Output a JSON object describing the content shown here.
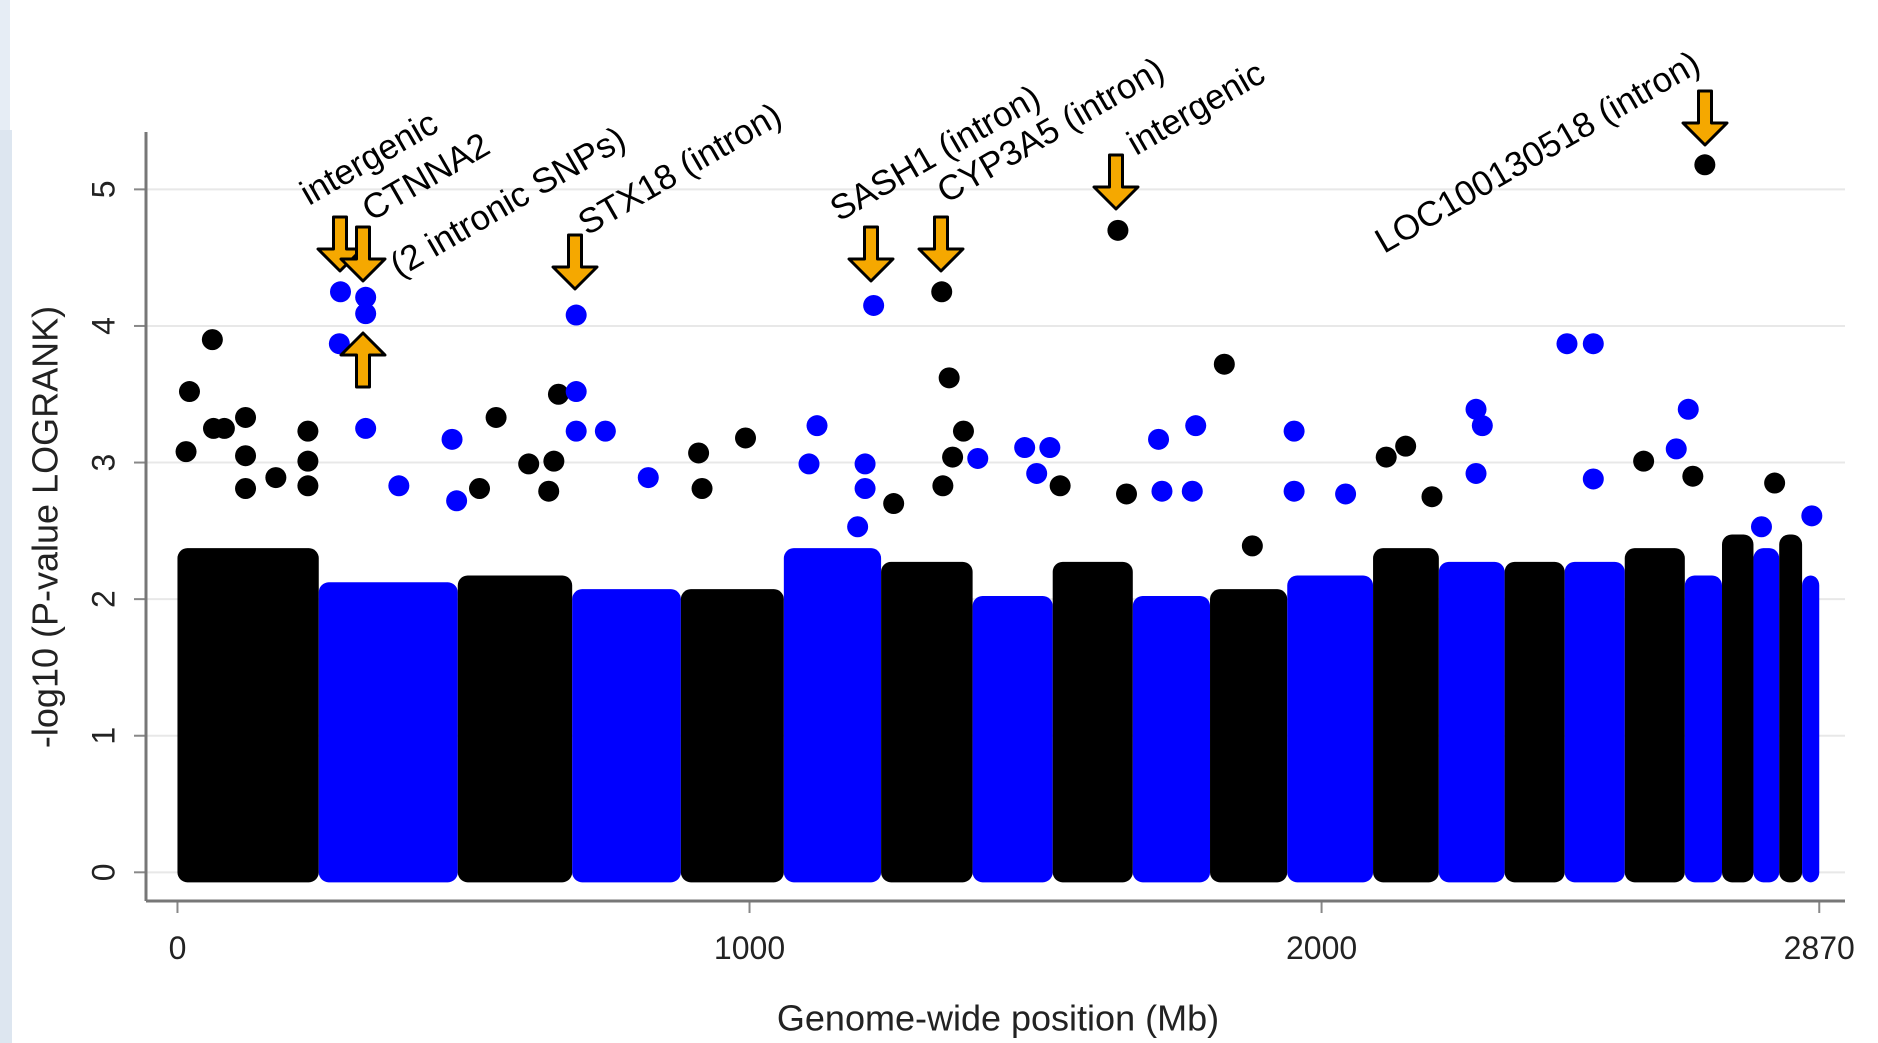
{
  "chart_data": {
    "type": "manhattan",
    "x_label": "Genome-wide position (Mb)",
    "y_label": "-log10 (P-value LOGRANK)",
    "xlim": [
      -55,
      2915
    ],
    "ylim": [
      -0.21,
      5.42
    ],
    "xticks": [
      0,
      1000,
      2000,
      2870
    ],
    "yticks": [
      0,
      1,
      2,
      3,
      4,
      5
    ],
    "grid": true,
    "chromosomes": {
      "starts": [
        0,
        247,
        490,
        690,
        880,
        1060,
        1230,
        1390,
        1530,
        1670,
        1805,
        1940,
        2090,
        2205,
        2320,
        2425,
        2530,
        2635,
        2700,
        2755,
        2800,
        2840
      ],
      "ends": [
        247,
        490,
        690,
        880,
        1060,
        1230,
        1390,
        1530,
        1670,
        1805,
        1940,
        2090,
        2205,
        2320,
        2425,
        2530,
        2635,
        2700,
        2755,
        2800,
        2840,
        2870
      ],
      "tops": [
        2.3,
        2.05,
        2.1,
        2.0,
        2.0,
        2.3,
        2.2,
        1.95,
        2.2,
        1.95,
        2.0,
        2.1,
        2.3,
        2.2,
        2.2,
        2.2,
        2.3,
        2.1,
        2.4,
        2.3,
        2.4,
        2.1
      ],
      "colors": [
        "#000000",
        "#0000ff",
        "#000000",
        "#0000ff",
        "#000000",
        "#0000ff",
        "#000000",
        "#0000ff",
        "#000000",
        "#0000ff",
        "#000000",
        "#0000ff",
        "#000000",
        "#0000ff",
        "#000000",
        "#0000ff",
        "#000000",
        "#0000ff",
        "#000000",
        "#0000ff",
        "#000000",
        "#0000ff"
      ]
    },
    "series": [
      {
        "color": "#000000",
        "x": [
          21,
          61,
          15,
          63,
          82,
          119,
          119,
          119,
          172,
          228,
          228,
          228,
          557,
          614,
          666,
          658,
          649,
          528,
          911,
          993,
          917,
          1336,
          1349,
          1374,
          1355,
          1338,
          1252,
          1644,
          1659,
          1543,
          1830,
          1879,
          2147,
          2113,
          2193,
          2563,
          2649,
          2670,
          2792
        ],
        "values": [
          3.52,
          3.9,
          3.08,
          3.25,
          3.25,
          3.33,
          3.05,
          2.81,
          2.89,
          3.23,
          3.01,
          2.83,
          3.33,
          2.99,
          3.5,
          3.01,
          2.79,
          2.81,
          3.07,
          3.18,
          2.81,
          4.25,
          3.62,
          3.23,
          3.04,
          2.83,
          2.7,
          4.7,
          2.77,
          2.83,
          3.72,
          2.39,
          3.12,
          3.04,
          2.75,
          3.01,
          2.9,
          5.18,
          2.85
        ]
      },
      {
        "color": "#0000ff",
        "x": [
          285,
          283,
          329,
          329,
          329,
          387,
          480,
          488,
          697,
          697,
          697,
          748,
          823,
          1118,
          1104,
          1202,
          1217,
          1202,
          1189,
          1399,
          1481,
          1525,
          1502,
          1715,
          1780,
          1721,
          1774,
          1952,
          1952,
          2042,
          2270,
          2281,
          2270,
          2429,
          2475,
          2475,
          2641,
          2620,
          2857,
          2769
        ],
        "values": [
          4.25,
          3.87,
          4.21,
          4.09,
          3.25,
          2.83,
          3.17,
          2.72,
          4.08,
          3.52,
          3.23,
          3.23,
          2.89,
          3.27,
          2.99,
          2.99,
          4.15,
          2.81,
          2.53,
          3.03,
          3.11,
          3.11,
          2.92,
          3.17,
          3.27,
          2.79,
          2.79,
          3.23,
          2.79,
          2.77,
          3.39,
          3.27,
          2.92,
          3.87,
          3.87,
          2.88,
          3.39,
          3.1,
          2.61,
          2.53
        ]
      }
    ],
    "annotations": [
      "intergenic",
      "CTNNA2",
      "(2 intronic SNPs)",
      "STX18 (intron)",
      "SASH1 (intron)",
      "CYP3A5 (intron)",
      "intergenic",
      "LOC100130518 (intron)"
    ]
  }
}
